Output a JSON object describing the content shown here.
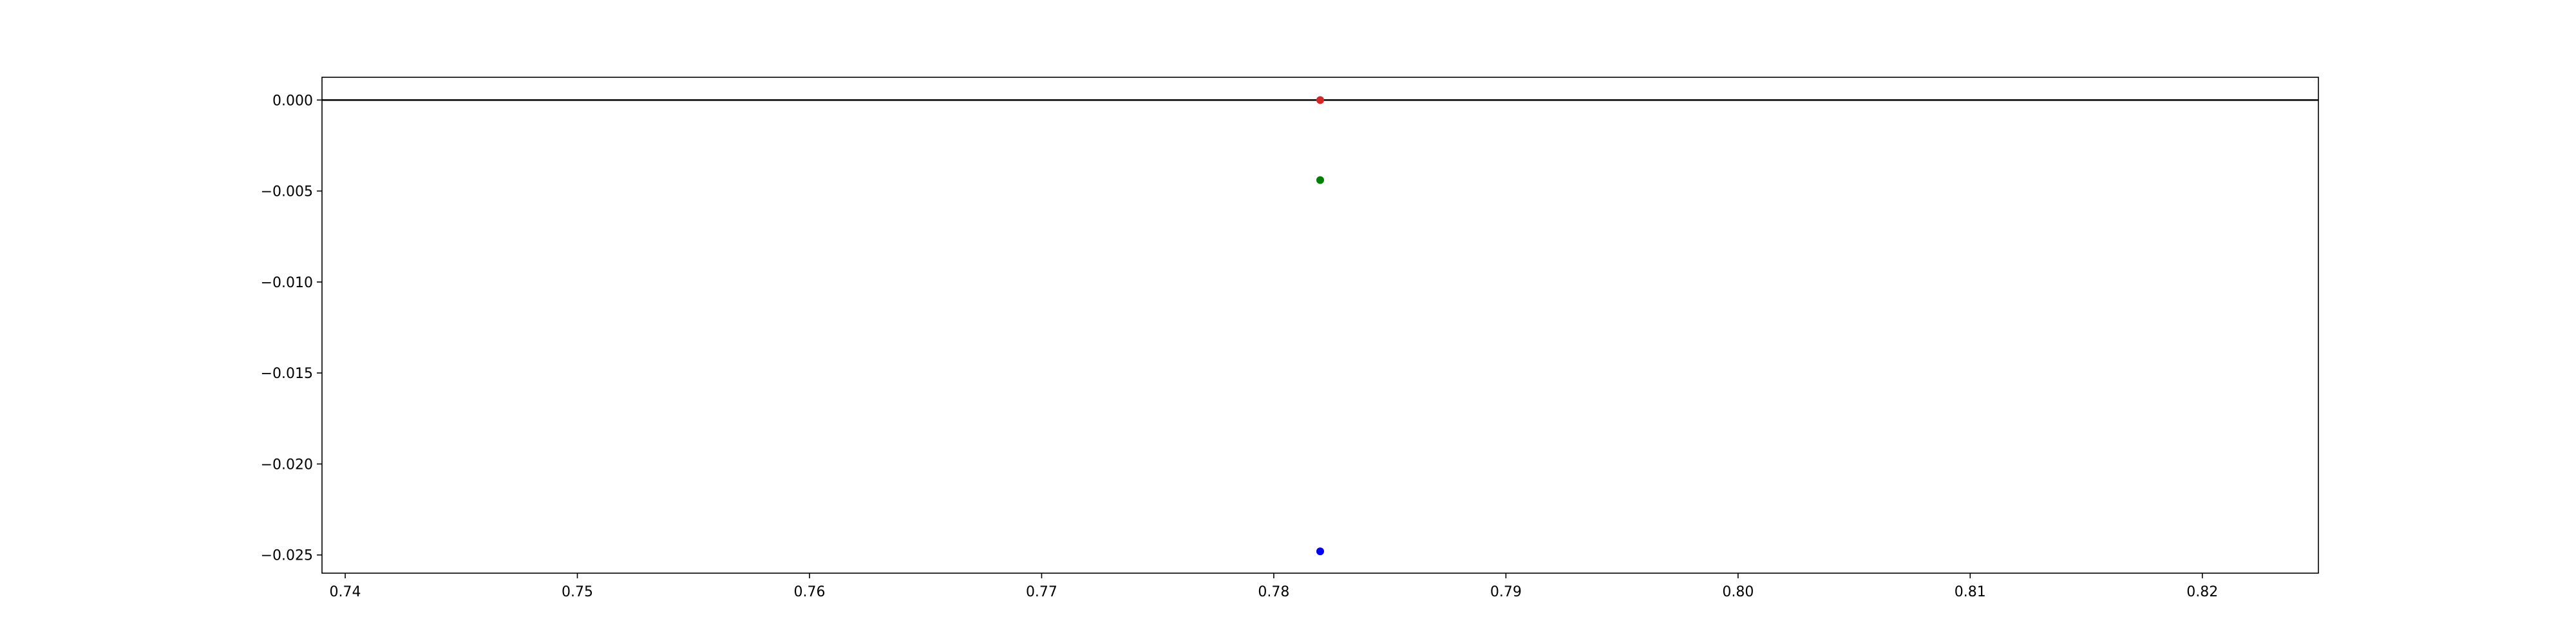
{
  "chart_data": {
    "type": "scatter",
    "title": "",
    "xlabel": "",
    "ylabel": "",
    "xlim": [
      0.739,
      0.825
    ],
    "ylim": [
      -0.026,
      0.00125
    ],
    "grid": false,
    "legend": "none",
    "x_ticks": [
      {
        "value": 0.74,
        "label": "0.74"
      },
      {
        "value": 0.75,
        "label": "0.75"
      },
      {
        "value": 0.76,
        "label": "0.76"
      },
      {
        "value": 0.77,
        "label": "0.77"
      },
      {
        "value": 0.78,
        "label": "0.78"
      },
      {
        "value": 0.79,
        "label": "0.79"
      },
      {
        "value": 0.8,
        "label": "0.80"
      },
      {
        "value": 0.81,
        "label": "0.81"
      },
      {
        "value": 0.82,
        "label": "0.82"
      }
    ],
    "y_ticks": [
      {
        "value": 0.0,
        "label": "0.000"
      },
      {
        "value": -0.005,
        "label": "−0.005"
      },
      {
        "value": -0.01,
        "label": "−0.010"
      },
      {
        "value": -0.015,
        "label": "−0.015"
      },
      {
        "value": -0.02,
        "label": "−0.020"
      },
      {
        "value": -0.025,
        "label": "−0.025"
      }
    ],
    "hline": {
      "y": 0.0,
      "color": "#000000"
    },
    "points": [
      {
        "x": 0.782,
        "y": 0.0,
        "color": "#d62728"
      },
      {
        "x": 0.782,
        "y": -0.0044,
        "color": "#008000"
      },
      {
        "x": 0.782,
        "y": -0.0248,
        "color": "#0000ff"
      }
    ]
  }
}
